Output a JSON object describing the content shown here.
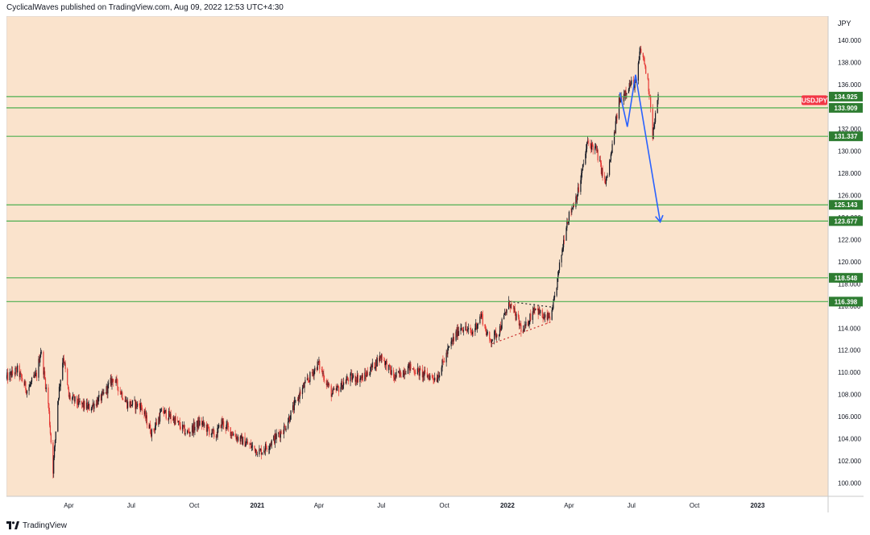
{
  "publisher_line": "CyclicalWaves published on TradingView.com, Aug 09, 2022 12:53 UTC+4:30",
  "footer": {
    "brand": "TradingView",
    "logo_icon": "tradingview-logo-icon"
  },
  "colors": {
    "background": "#fae3cc",
    "level_line": "#4caf50",
    "up_candle": "#131722",
    "down_candle": "#e53935",
    "arrow": "#2962ff",
    "symbol_badge": "#f23645",
    "level_badge": "#2e7d32",
    "axis_text": "#131722"
  },
  "chart_data": {
    "type": "candlestick",
    "symbol": "USDJPY",
    "currency": "JPY",
    "ylim": [
      98.8,
      142.2
    ],
    "xlim": [
      "2020-01-01",
      "2023-04-14"
    ],
    "y_ticks": [
      "100.000",
      "102.000",
      "104.000",
      "106.000",
      "108.000",
      "110.000",
      "112.000",
      "114.000",
      "116.000",
      "118.000",
      "120.000",
      "122.000",
      "124.000",
      "126.000",
      "128.000",
      "130.000",
      "132.000",
      "134.000",
      "136.000",
      "138.000",
      "140.000"
    ],
    "x_ticks": [
      {
        "date": "2020-04-01",
        "label": "Apr"
      },
      {
        "date": "2020-07-01",
        "label": "Jul"
      },
      {
        "date": "2020-10-01",
        "label": "Oct"
      },
      {
        "date": "2021-01-01",
        "label": "2021"
      },
      {
        "date": "2021-04-01",
        "label": "Apr"
      },
      {
        "date": "2021-07-01",
        "label": "Jul"
      },
      {
        "date": "2021-10-01",
        "label": "Oct"
      },
      {
        "date": "2022-01-01",
        "label": "2022"
      },
      {
        "date": "2022-04-01",
        "label": "Apr"
      },
      {
        "date": "2022-07-01",
        "label": "Jul"
      },
      {
        "date": "2022-10-01",
        "label": "Oct"
      },
      {
        "date": "2023-01-01",
        "label": "2023"
      }
    ],
    "horizontal_levels": [
      {
        "value": 134.925,
        "label": "134.925"
      },
      {
        "value": 133.909,
        "label": "133.909"
      },
      {
        "value": 131.337,
        "label": "131.337"
      },
      {
        "value": 125.143,
        "label": "125.143"
      },
      {
        "value": 123.677,
        "label": "123.677"
      },
      {
        "value": 118.548,
        "label": "118.548"
      },
      {
        "value": 116.398,
        "label": "116.398"
      }
    ],
    "last_price": {
      "value": 134.6,
      "label": "USDJPY"
    },
    "price_path": [
      [
        "2020-01-01",
        109.5
      ],
      [
        "2020-01-17",
        110.2
      ],
      [
        "2020-01-31",
        108.4
      ],
      [
        "2020-02-14",
        109.8
      ],
      [
        "2020-02-20",
        112.0
      ],
      [
        "2020-03-02",
        107.2
      ],
      [
        "2020-03-09",
        101.2
      ],
      [
        "2020-03-16",
        107.5
      ],
      [
        "2020-03-24",
        111.5
      ],
      [
        "2020-04-01",
        107.8
      ],
      [
        "2020-04-15",
        107.2
      ],
      [
        "2020-05-01",
        106.8
      ],
      [
        "2020-05-20",
        107.8
      ],
      [
        "2020-06-05",
        109.5
      ],
      [
        "2020-06-25",
        107.2
      ],
      [
        "2020-07-15",
        107.0
      ],
      [
        "2020-07-31",
        104.5
      ],
      [
        "2020-08-15",
        106.5
      ],
      [
        "2020-09-01",
        105.8
      ],
      [
        "2020-09-20",
        104.5
      ],
      [
        "2020-10-10",
        105.5
      ],
      [
        "2020-11-01",
        104.2
      ],
      [
        "2020-11-10",
        105.5
      ],
      [
        "2020-12-01",
        104.2
      ],
      [
        "2021-01-05",
        102.8
      ],
      [
        "2021-01-20",
        103.6
      ],
      [
        "2021-02-10",
        105.0
      ],
      [
        "2021-03-05",
        108.2
      ],
      [
        "2021-03-31",
        110.8
      ],
      [
        "2021-04-20",
        108.0
      ],
      [
        "2021-05-15",
        109.5
      ],
      [
        "2021-06-05",
        109.5
      ],
      [
        "2021-07-01",
        111.5
      ],
      [
        "2021-07-20",
        109.5
      ],
      [
        "2021-08-10",
        110.5
      ],
      [
        "2021-09-01",
        109.8
      ],
      [
        "2021-09-20",
        109.5
      ],
      [
        "2021-10-10",
        112.5
      ],
      [
        "2021-10-25",
        114.2
      ],
      [
        "2021-11-10",
        113.5
      ],
      [
        "2021-11-24",
        115.2
      ],
      [
        "2021-12-05",
        112.8
      ],
      [
        "2021-12-20",
        113.8
      ],
      [
        "2022-01-04",
        116.3
      ],
      [
        "2022-01-24",
        113.6
      ],
      [
        "2022-02-10",
        116.0
      ],
      [
        "2022-02-24",
        114.8
      ],
      [
        "2022-03-07",
        115.2
      ],
      [
        "2022-03-28",
        123.5
      ],
      [
        "2022-04-15",
        126.5
      ],
      [
        "2022-04-28",
        130.8
      ],
      [
        "2022-05-10",
        130.2
      ],
      [
        "2022-05-24",
        127.0
      ],
      [
        "2022-06-01",
        129.5
      ],
      [
        "2022-06-13",
        134.5
      ],
      [
        "2022-06-20",
        135.2
      ],
      [
        "2022-06-28",
        136.0
      ],
      [
        "2022-07-08",
        136.2
      ],
      [
        "2022-07-14",
        139.2
      ],
      [
        "2022-07-20",
        138.0
      ],
      [
        "2022-07-28",
        135.0
      ],
      [
        "2022-08-01",
        131.5
      ],
      [
        "2022-08-09",
        134.8
      ]
    ],
    "annotations": {
      "projection_path": [
        [
          "2022-06-14",
          135.3
        ],
        [
          "2022-06-25",
          132.2
        ],
        [
          "2022-07-07",
          136.9
        ],
        [
          "2022-08-12",
          123.6
        ]
      ],
      "triangle_upper": [
        [
          "2022-01-04",
          116.4
        ],
        [
          "2022-03-07",
          115.9
        ]
      ],
      "triangle_lower": [
        [
          "2021-12-10",
          112.6
        ],
        [
          "2022-03-07",
          114.6
        ]
      ]
    }
  }
}
